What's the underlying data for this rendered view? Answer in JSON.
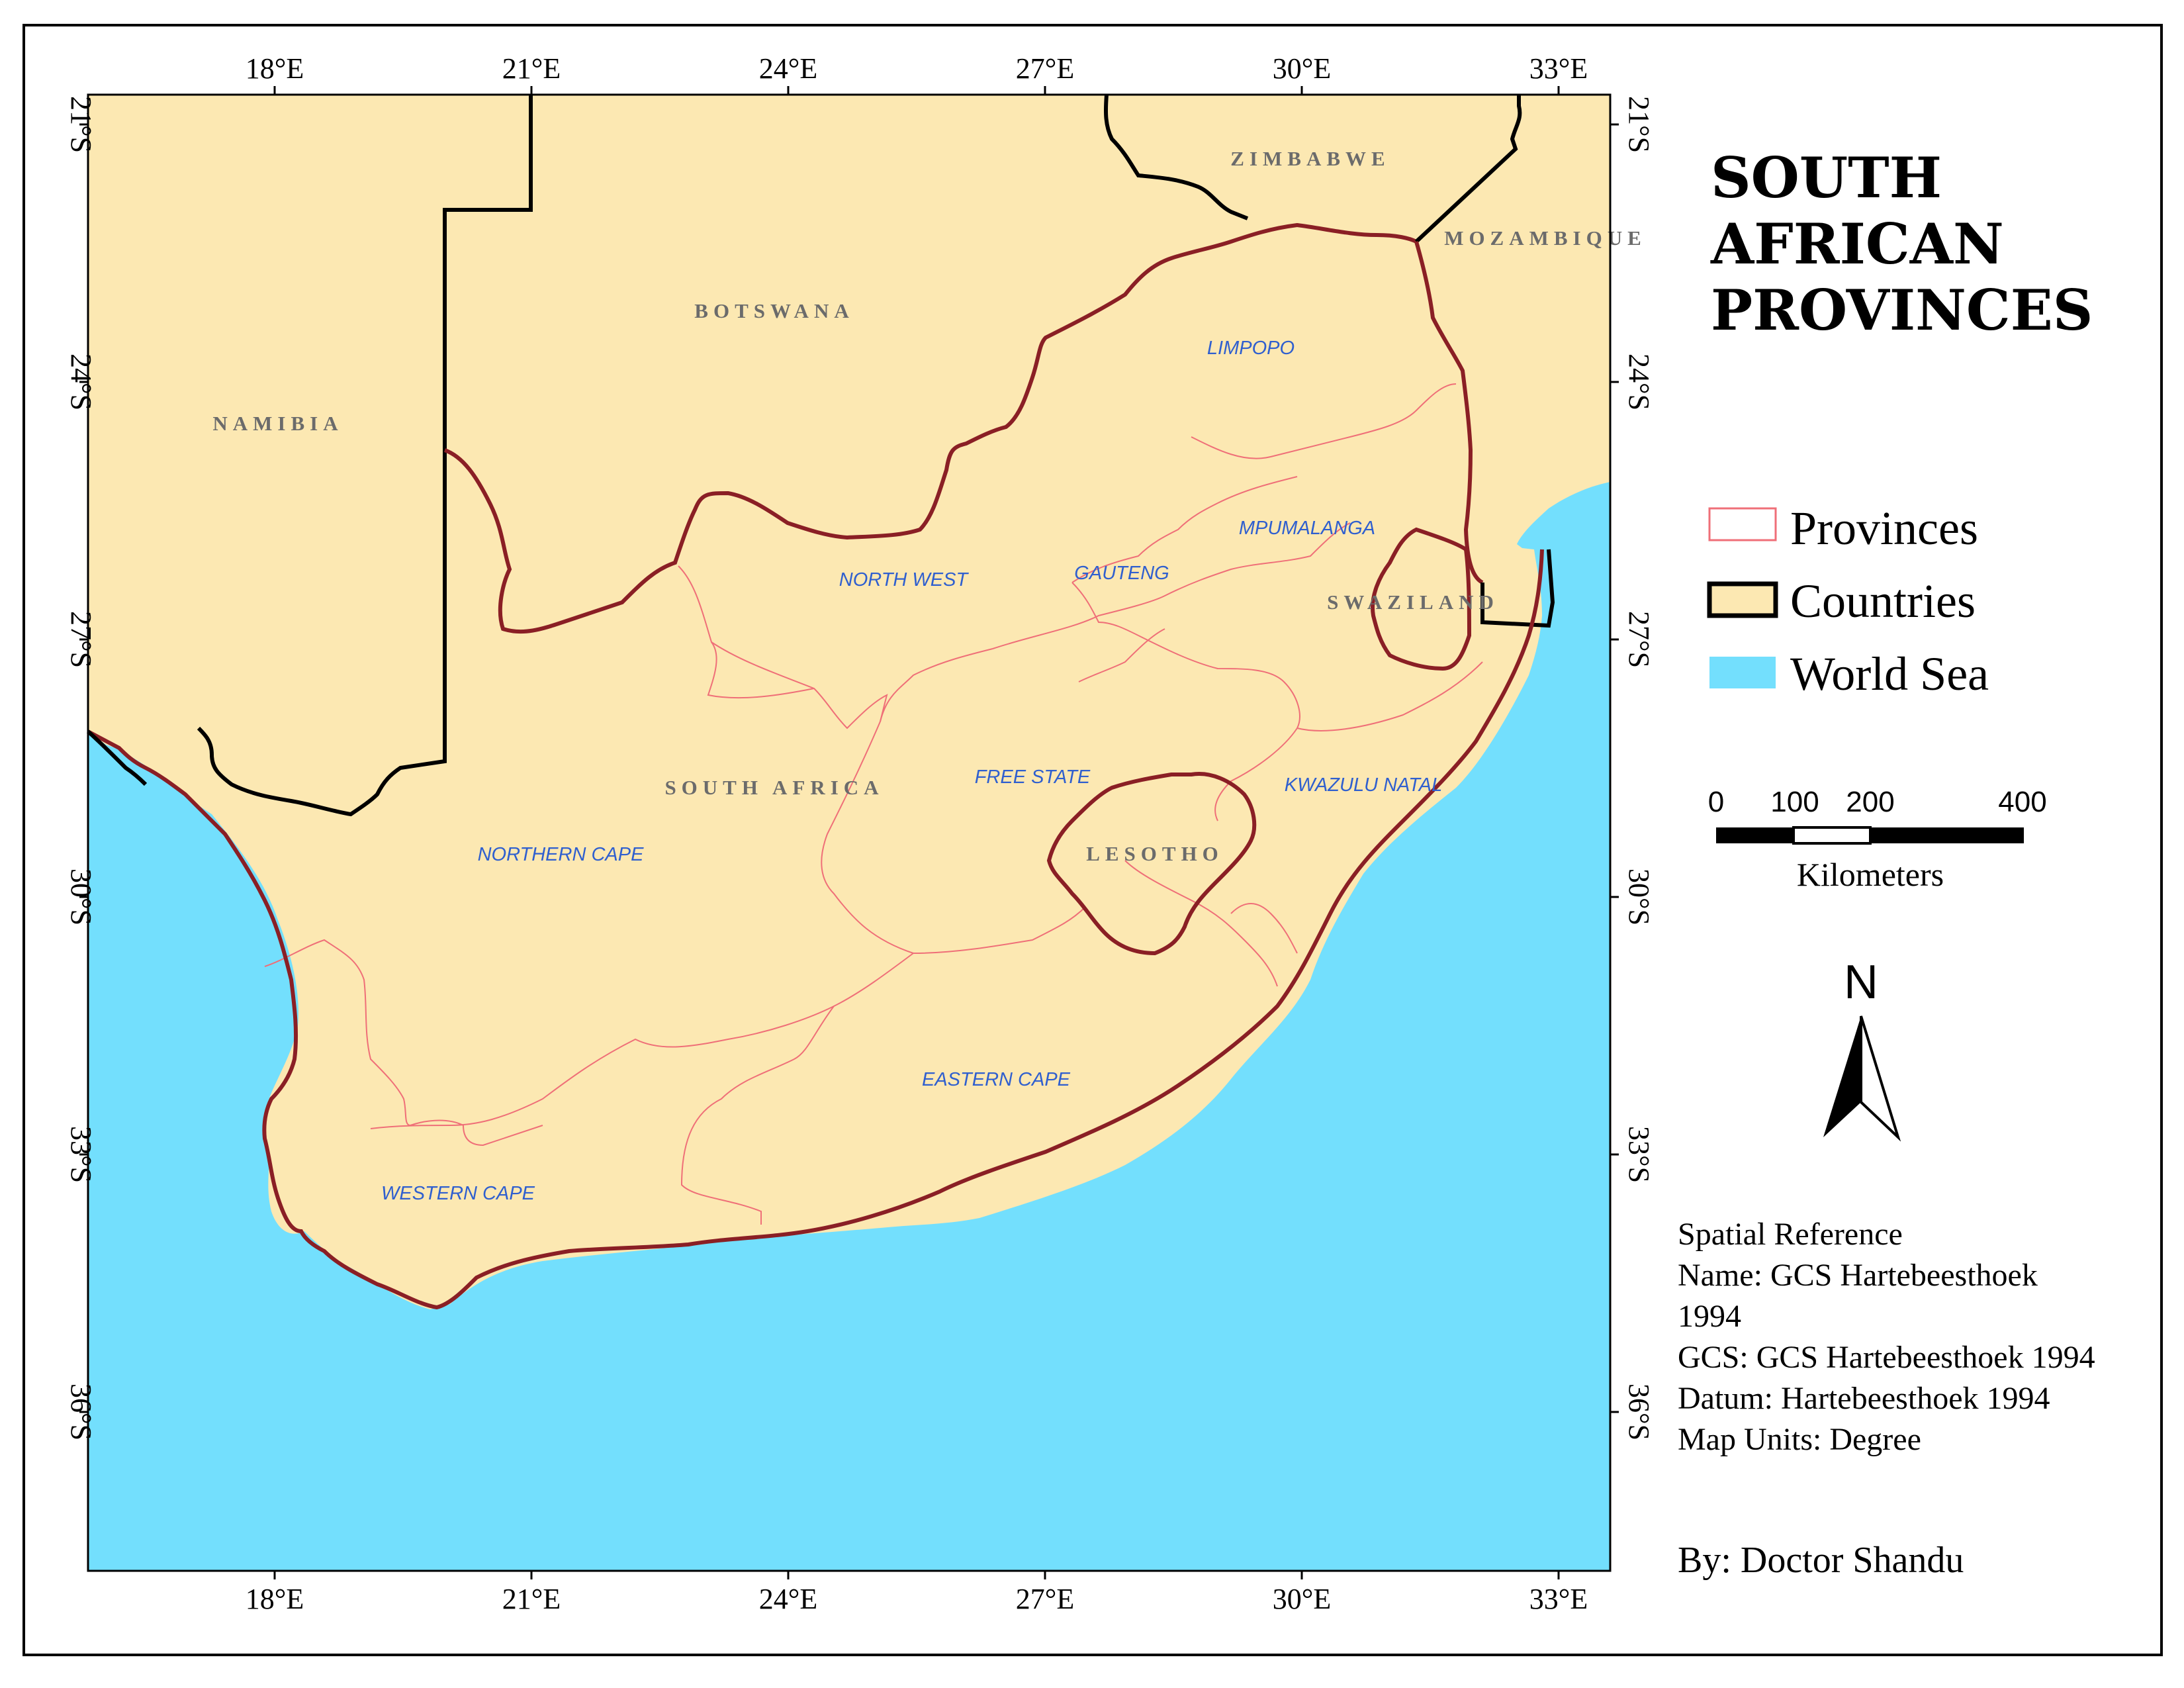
{
  "map": {
    "title_lines": [
      "SOUTH",
      "AFRICAN",
      "PROVINCES"
    ],
    "colors": {
      "land": "#fce8b2",
      "sea": "#73dffd",
      "province_line": "#ef6f78",
      "country_line": "#000000",
      "province_label": "#2f5fcf",
      "country_label": "#6b6b6b"
    },
    "longitude_labels": [
      "18°E",
      "21°E",
      "24°E",
      "27°E",
      "30°E",
      "33°E"
    ],
    "latitude_labels": [
      "21°S",
      "24°S",
      "27°S",
      "30°S",
      "33°S",
      "36°S"
    ],
    "countries": {
      "namibia": "NAMIBIA",
      "botswana": "BOTSWANA",
      "zimbabwe": "ZIMBABWE",
      "mozambique": "MOZAMBIQUE",
      "swaziland": "SWAZILAND",
      "lesotho": "LESOTHO",
      "south_africa": "SOUTH AFRICA"
    },
    "provinces": {
      "limpopo": "LIMPOPO",
      "mpumalanga": "MPUMALANGA",
      "gauteng": "GAUTENG",
      "north_west": "NORTH WEST",
      "free_state": "FREE STATE",
      "kwazulu_natal": "KWAZULU NATAL",
      "northern_cape": "NORTHERN CAPE",
      "eastern_cape": "EASTERN CAPE",
      "western_cape": "WESTERN CAPE"
    }
  },
  "legend": {
    "provinces": "Provinces",
    "countries": "Countries",
    "world_sea": "World Sea"
  },
  "scale_bar": {
    "ticks": [
      "0",
      "100",
      "200",
      "400"
    ],
    "unit": "Kilometers"
  },
  "north_arrow": {
    "label": "N"
  },
  "spatial_reference": {
    "lines": [
      "Spatial Reference",
      "Name: GCS Hartebeesthoek",
      "1994",
      "GCS: GCS Hartebeesthoek 1994",
      "Datum: Hartebeesthoek 1994",
      "Map Units: Degree"
    ]
  },
  "author": "By: Doctor Shandu"
}
